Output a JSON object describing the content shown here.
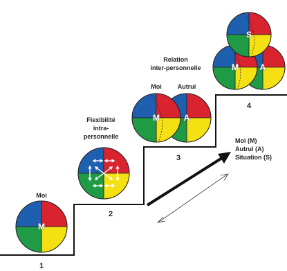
{
  "colors": {
    "blue": "#1f5fb0",
    "red": "#d9232e",
    "green": "#1f9a45",
    "yellow": "#f5e014",
    "line": "#111111"
  },
  "steps": [
    {
      "number": "1",
      "label_lines": [
        "Moi"
      ]
    },
    {
      "number": "2",
      "label_lines": [
        "Flexibilité",
        "intra-",
        "personnelle"
      ]
    },
    {
      "number": "3",
      "label_lines": [
        "Moi",
        "Autrui"
      ]
    },
    {
      "number": "4",
      "label_lines": [
        "Relation",
        "inter-personnelle"
      ]
    }
  ],
  "letters": {
    "moi": "M",
    "autrui": "A",
    "situation": "S"
  },
  "legend": {
    "lines": [
      "Moi (M)",
      "Autrui (A)",
      "Situation (S)"
    ]
  },
  "icons": {
    "flexibility_arrows": "bidirectional-arrows-icon"
  }
}
